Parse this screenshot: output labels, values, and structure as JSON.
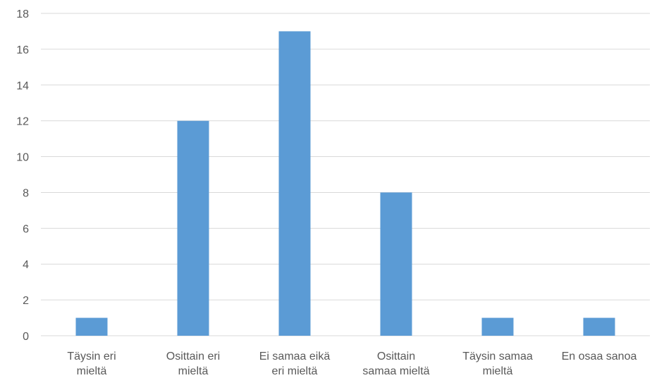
{
  "chart_data": {
    "type": "bar",
    "categories": [
      [
        "Täysin eri",
        "mieltä"
      ],
      [
        "Osittain eri",
        "mieltä"
      ],
      [
        "Ei samaa eikä",
        "eri mieltä"
      ],
      [
        "Osittain",
        "samaa mieltä"
      ],
      [
        "Täysin samaa",
        "mieltä"
      ],
      [
        "En osaa sanoa"
      ]
    ],
    "values": [
      1,
      12,
      17,
      8,
      1,
      1
    ],
    "ylim": [
      0,
      18
    ],
    "yticks": [
      "0",
      "2",
      "4",
      "6",
      "8",
      "10",
      "12",
      "14",
      "16",
      "18"
    ],
    "title": "",
    "xlabel": "",
    "ylabel": "",
    "grid": true,
    "legend": "none",
    "bar_color": "#5b9bd5"
  }
}
